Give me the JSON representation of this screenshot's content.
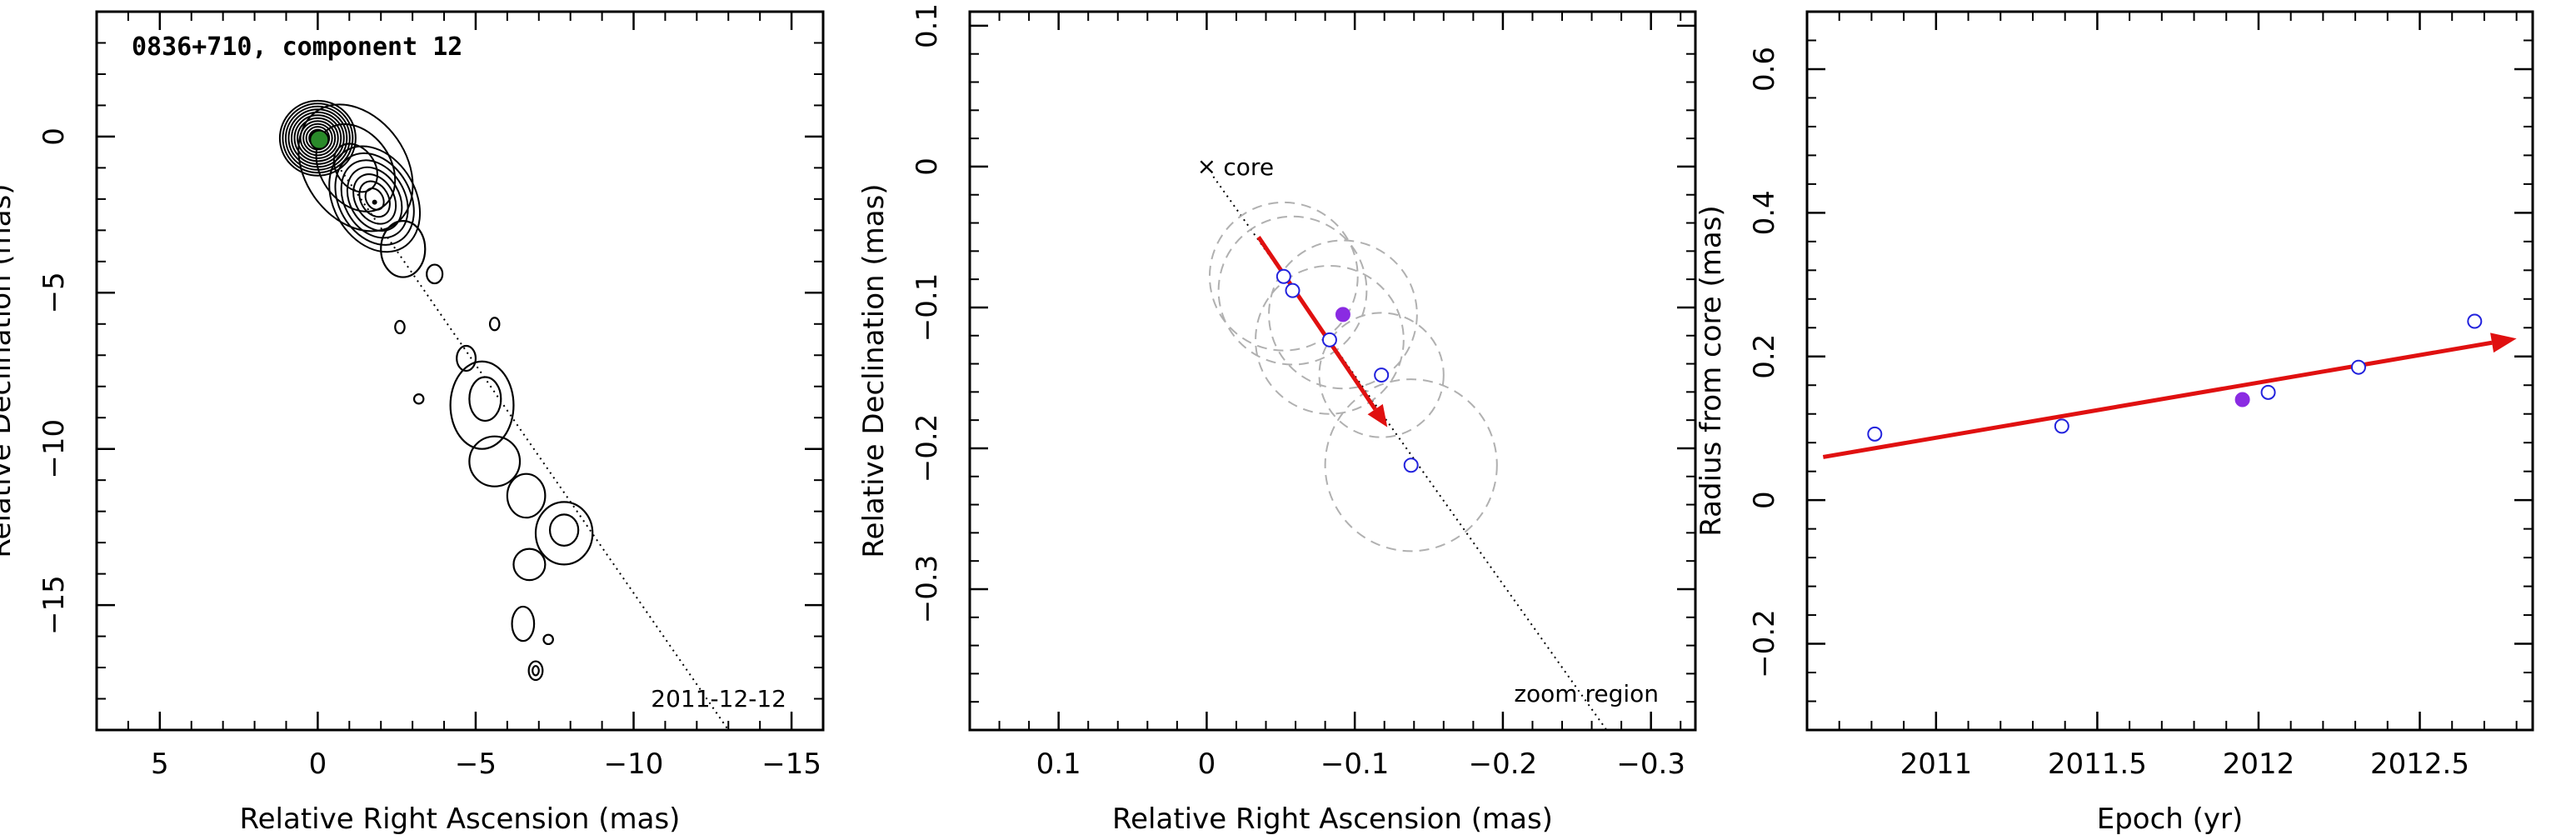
{
  "charts": [
    {
      "type": "contour",
      "title": "0836+710, component 12",
      "xlabel": "Relative Right Ascension (mas)",
      "ylabel": "Relative Declination (mas)",
      "xlim": [
        7.0,
        -16.0
      ],
      "ylim": [
        -19.0,
        4.0
      ],
      "xticks": [
        5,
        0,
        -5,
        -10,
        -15
      ],
      "yticks": [
        0,
        -5,
        -10,
        -15
      ],
      "annotations": {
        "epoch": "2011-12-12"
      },
      "jet_line": [
        [
          0,
          0
        ],
        [
          -13.0,
          -19.0
        ]
      ],
      "core": {
        "x": -0.05,
        "y": -0.1,
        "color": "#2a8a2a"
      },
      "peak_knot": {
        "x": -1.8,
        "y": -2.1
      },
      "contour_groups": [
        {
          "cx": 0.0,
          "cy": -0.05,
          "rx": 1.2,
          "ry": 1.2,
          "rot": 0,
          "levels": 12
        },
        {
          "cx": -1.8,
          "cy": -2.0,
          "rx": 1.3,
          "ry": 1.8,
          "rot": -30,
          "levels": 7
        },
        {
          "cx": -1.2,
          "cy": -1.0,
          "rx": 1.6,
          "ry": 2.2,
          "rot": -35,
          "levels": 3
        }
      ],
      "contour_blobs": [
        {
          "cx": -2.7,
          "cy": -3.6,
          "rx": 0.7,
          "ry": 0.9
        },
        {
          "cx": -3.7,
          "cy": -4.4,
          "rx": 0.25,
          "ry": 0.3
        },
        {
          "cx": -2.6,
          "cy": -6.1,
          "rx": 0.15,
          "ry": 0.2
        },
        {
          "cx": -5.6,
          "cy": -6.0,
          "rx": 0.15,
          "ry": 0.2
        },
        {
          "cx": -4.7,
          "cy": -7.1,
          "rx": 0.3,
          "ry": 0.4
        },
        {
          "cx": -3.2,
          "cy": -8.4,
          "rx": 0.15,
          "ry": 0.15
        },
        {
          "cx": -5.2,
          "cy": -8.6,
          "rx": 1.0,
          "ry": 1.4
        },
        {
          "cx": -5.6,
          "cy": -10.4,
          "rx": 0.8,
          "ry": 0.8
        },
        {
          "cx": -6.6,
          "cy": -11.5,
          "rx": 0.6,
          "ry": 0.7
        },
        {
          "cx": -7.8,
          "cy": -12.7,
          "rx": 0.9,
          "ry": 1.0
        },
        {
          "cx": -6.7,
          "cy": -13.7,
          "rx": 0.5,
          "ry": 0.5
        },
        {
          "cx": -6.5,
          "cy": -15.6,
          "rx": 0.35,
          "ry": 0.55
        },
        {
          "cx": -7.3,
          "cy": -16.1,
          "rx": 0.15,
          "ry": 0.15
        },
        {
          "cx": -6.9,
          "cy": -17.1,
          "rx": 0.22,
          "ry": 0.3
        }
      ],
      "contour_inner": [
        {
          "cx": -5.3,
          "cy": -8.4,
          "rx": 0.5,
          "ry": 0.7
        },
        {
          "cx": -7.8,
          "cy": -12.6,
          "rx": 0.45,
          "ry": 0.5
        },
        {
          "cx": -6.9,
          "cy": -17.1,
          "rx": 0.1,
          "ry": 0.15
        }
      ]
    },
    {
      "type": "scatter",
      "xlabel": "Relative Right Ascension (mas)",
      "ylabel": "Relative Declination (mas)",
      "xlim": [
        0.16,
        -0.33
      ],
      "ylim": [
        -0.4,
        0.11
      ],
      "xticks": [
        0.1,
        0,
        -0.1,
        -0.2,
        -0.3
      ],
      "yticks": [
        0.1,
        0,
        -0.1,
        -0.2,
        -0.3
      ],
      "annotations": {
        "core_label": "core",
        "zoom_label": "zoom region"
      },
      "core": {
        "x": 0.0,
        "y": 0.0
      },
      "direction_line": [
        [
          0,
          0
        ],
        [
          -0.27,
          -0.4
        ]
      ],
      "points": [
        {
          "x": -0.052,
          "y": -0.078,
          "filled": false,
          "radius": 0.05
        },
        {
          "x": -0.058,
          "y": -0.088,
          "filled": false,
          "radius": 0.05
        },
        {
          "x": -0.083,
          "y": -0.123,
          "filled": false,
          "radius": 0.05
        },
        {
          "x": -0.092,
          "y": -0.105,
          "filled": true,
          "radius": 0.05
        },
        {
          "x": -0.118,
          "y": -0.148,
          "filled": false,
          "radius": 0.042
        },
        {
          "x": -0.138,
          "y": -0.212,
          "filled": false,
          "radius": 0.058
        }
      ],
      "vector": {
        "from": [
          -0.035,
          -0.05
        ],
        "to": [
          -0.122,
          -0.185
        ]
      }
    },
    {
      "type": "scatter",
      "xlabel": "Epoch (yr)",
      "ylabel": "Radius from core (mas)",
      "xlim": [
        2010.6,
        2012.85
      ],
      "ylim": [
        -0.32,
        0.68
      ],
      "xticks": [
        2011,
        2011.5,
        2012,
        2012.5
      ],
      "yticks": [
        0.6,
        0.4,
        0.2,
        0,
        -0.2
      ],
      "points": [
        {
          "x": 2010.81,
          "y": 0.092,
          "filled": false
        },
        {
          "x": 2011.39,
          "y": 0.103,
          "filled": false
        },
        {
          "x": 2011.95,
          "y": 0.14,
          "filled": true
        },
        {
          "x": 2012.03,
          "y": 0.15,
          "filled": false
        },
        {
          "x": 2012.31,
          "y": 0.185,
          "filled": false
        },
        {
          "x": 2012.67,
          "y": 0.249,
          "filled": false
        }
      ],
      "fit": {
        "from": [
          2010.65,
          0.06
        ],
        "to": [
          2012.8,
          0.225
        ]
      }
    }
  ],
  "colors": {
    "open_marker": "#2222dd",
    "filled_marker": "#8a2be2",
    "arrow": "#e01010",
    "circle": "#b0b0b0",
    "core": "#2a8a2a"
  }
}
